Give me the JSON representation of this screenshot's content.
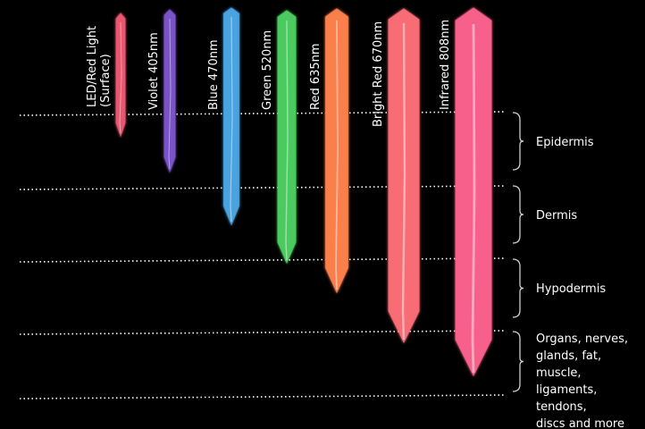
{
  "beams": [
    {
      "label": "LED/Red Light (Surface)",
      "label_lines": [
        "LED/Red Light",
        "(Surface)"
      ],
      "color": "#e8566f",
      "depth": "Surface"
    },
    {
      "label": "Violet 405nm",
      "color": "#7a52c8",
      "depth": "Epidermis"
    },
    {
      "label": "Blue 470nm",
      "color": "#4aa3e0",
      "depth": "Dermis"
    },
    {
      "label": "Green 520nm",
      "color": "#4ccb5e",
      "depth": "Dermis"
    },
    {
      "label": "Red 635nm",
      "color": "#fb7f4b",
      "depth": "Hypodermis"
    },
    {
      "label": "Bright Red 670nm",
      "color": "#f86c74",
      "depth": "Organs"
    },
    {
      "label": "Infrared 808nm",
      "color": "#f7608a",
      "depth": "Organs"
    }
  ],
  "layers": [
    {
      "label": "Epidermis"
    },
    {
      "label": "Dermis"
    },
    {
      "label": "Hypodermis"
    },
    {
      "label": "Organs, nerves, glands, fat, muscle, ligaments, tendons, discs and more",
      "lines": [
        "Organs, nerves,",
        "glands, fat, muscle,",
        "ligaments, tendons,",
        "discs and more"
      ]
    }
  ]
}
